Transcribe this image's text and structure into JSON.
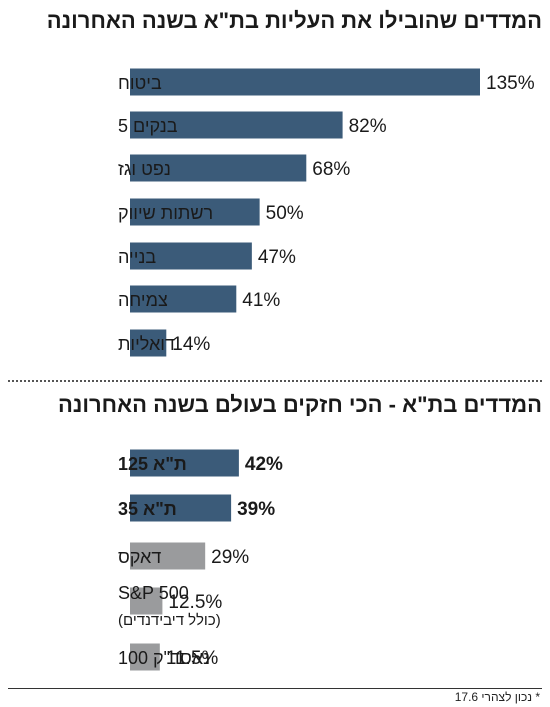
{
  "chart_data": [
    {
      "type": "bar",
      "orientation": "horizontal",
      "title": "המדדים שהובילו את העליות בת\"א בשנה האחרונה",
      "categories": [
        "ביטוח",
        "בנקים 5",
        "נפט וגז",
        "רשתות שיווק",
        "בנייה",
        "צמיחה",
        "דואליות"
      ],
      "values": [
        135,
        82,
        68,
        50,
        47,
        41,
        14
      ],
      "value_labels": [
        "135%",
        "82%",
        "68%",
        "50%",
        "47%",
        "41%",
        "14%"
      ],
      "unit": "%",
      "color": "#3b5b79"
    },
    {
      "type": "bar",
      "orientation": "horizontal",
      "title": "המדדים בת\"א - הכי חזקים בעולם בשנה האחרונה",
      "categories": [
        "ת\"א 125",
        "ת\"א 35",
        "דאקס",
        "S&P 500",
        "נאסד\"ק 100"
      ],
      "category_sublabels": [
        "",
        "",
        "",
        "(כולל דיבידנדים)",
        ""
      ],
      "values": [
        42,
        39,
        29,
        12.5,
        11.5
      ],
      "value_labels": [
        "42%",
        "39%",
        "29%",
        "12.5%",
        "11.5%"
      ],
      "bold": [
        true,
        true,
        false,
        false,
        false
      ],
      "colors": [
        "#3b5b79",
        "#3b5b79",
        "#9a9b9d",
        "#9a9b9d",
        "#9a9b9d"
      ],
      "unit": "%"
    }
  ],
  "footnote": "* נכון לצהרי 17.6"
}
